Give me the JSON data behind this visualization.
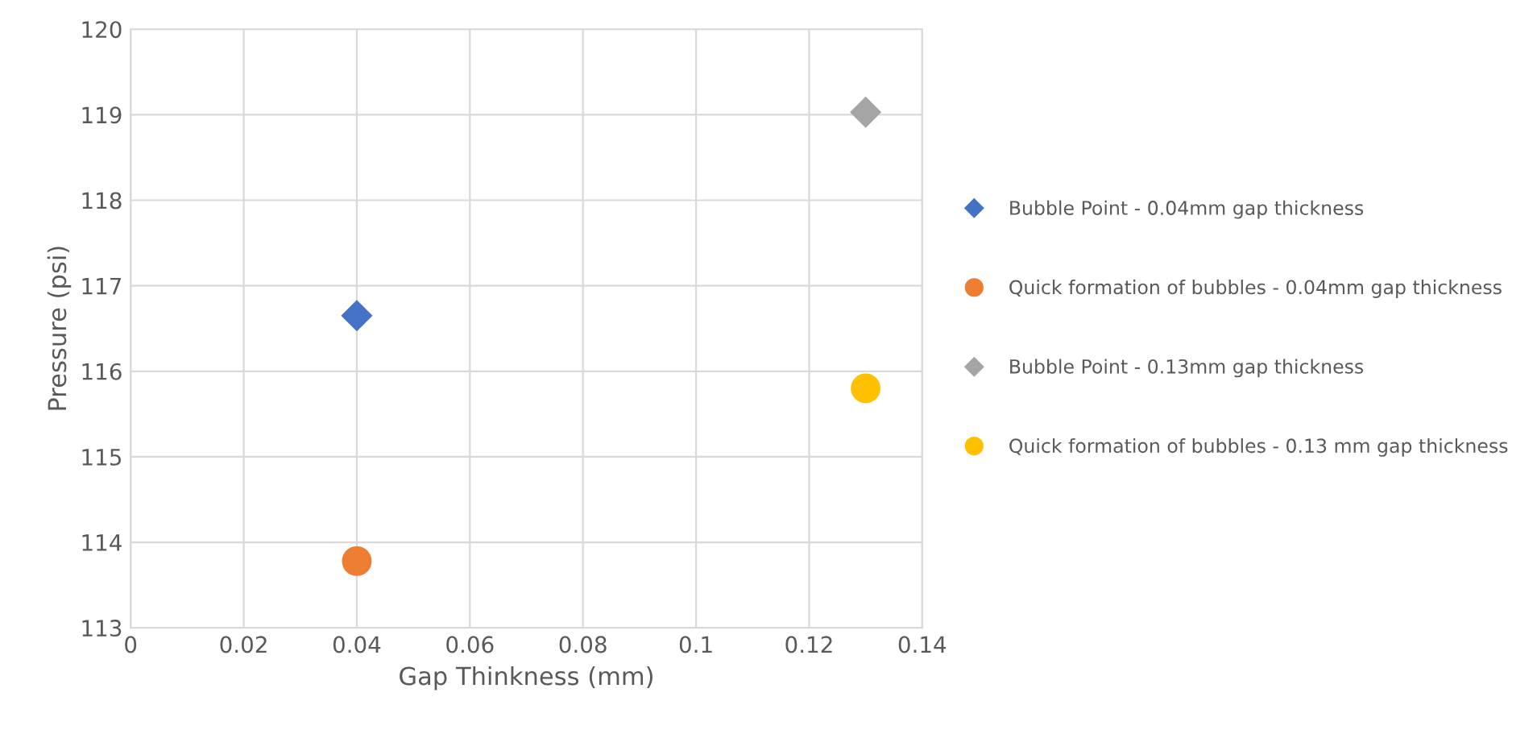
{
  "chart_data": {
    "type": "scatter",
    "xlabel": "Gap Thinkness (mm)",
    "ylabel": "Pressure (psi)",
    "xlim": [
      0,
      0.14
    ],
    "xticks": [
      0,
      0.02,
      0.04,
      0.06,
      0.08,
      0.1,
      0.12,
      0.14
    ],
    "ylim": [
      113,
      120
    ],
    "yticks": [
      113,
      114,
      115,
      116,
      117,
      118,
      119,
      120
    ],
    "grid": true,
    "legend": "right",
    "x": [
      0.04,
      0.13
    ],
    "series": [
      {
        "name": "Bubble Point - 0.04mm gap thickness",
        "color": "#4472c4",
        "marker": "diamond",
        "values": [
          116.65,
          null
        ]
      },
      {
        "name": "Quick formation of bubbles - 0.04mm gap thickness",
        "color": "#ed7d31",
        "marker": "circle",
        "values": [
          113.78,
          null
        ]
      },
      {
        "name": "Bubble Point - 0.13mm gap thickness",
        "color": "#a5a5a5",
        "marker": "diamond",
        "values": [
          null,
          119.03
        ]
      },
      {
        "name": "Quick formation of bubbles - 0.13 mm gap thickness",
        "color": "#ffc000",
        "marker": "circle",
        "values": [
          null,
          115.8
        ]
      }
    ]
  }
}
